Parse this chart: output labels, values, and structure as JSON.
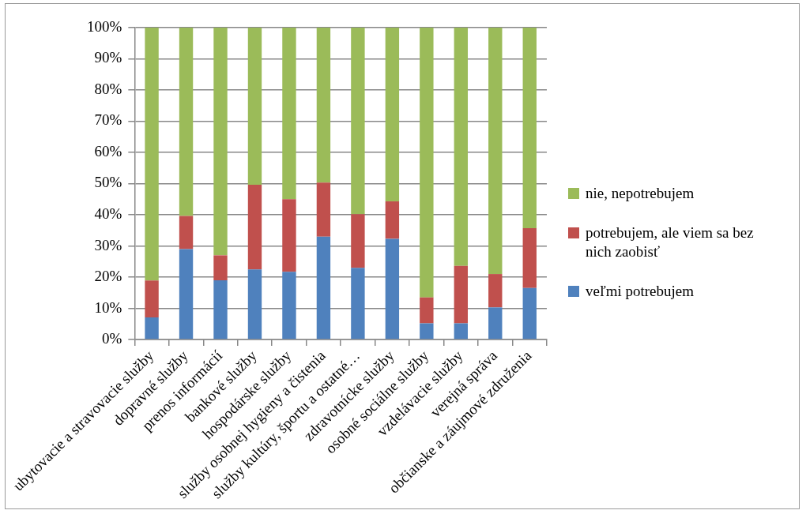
{
  "chart_data": {
    "type": "bar",
    "stacked": true,
    "categories": [
      "ubytovacie a stravovacie služby",
      "dopravné služby",
      "prenos informácií",
      "bankové služby",
      "hospodárske služby",
      "služby osobnej hygieny a čistenia",
      "služby kultúry, športu a ostatné…",
      "zdravotnícke služby",
      "osobné sociálne služby",
      "vzdelávacie služby",
      "verejná správa",
      "občianske a záujmové združenia"
    ],
    "series": [
      {
        "name": "veľmi potrebujem",
        "color": "#4f81bd",
        "values": [
          7.1,
          29,
          19,
          22.5,
          21.7,
          33,
          23,
          32.3,
          5.2,
          5.2,
          10.3,
          16.5
        ]
      },
      {
        "name": "potrebujem, ale viem sa bez nich zaobisť",
        "color": "#c0504d",
        "values": [
          11.8,
          10.6,
          8,
          27.1,
          23.3,
          17.3,
          17.2,
          12,
          8.3,
          18.4,
          10.7,
          19.2
        ]
      },
      {
        "name": "nie, nepotrebujem",
        "color": "#9bbb59",
        "values": [
          81.1,
          60.4,
          73,
          50.4,
          55,
          49.7,
          59.8,
          55.7,
          86.5,
          76.4,
          79,
          64.3
        ]
      }
    ],
    "ylim": [
      0,
      100
    ],
    "yticks": [
      {
        "value": 0,
        "label": "0%"
      },
      {
        "value": 10,
        "label": "10%"
      },
      {
        "value": 20,
        "label": "20%"
      },
      {
        "value": 30,
        "label": "30%"
      },
      {
        "value": 40,
        "label": "40%"
      },
      {
        "value": 50,
        "label": "50%"
      },
      {
        "value": 60,
        "label": "60%"
      },
      {
        "value": 70,
        "label": "70%"
      },
      {
        "value": 80,
        "label": "80%"
      },
      {
        "value": 90,
        "label": "90%"
      },
      {
        "value": 100,
        "label": "100%"
      }
    ],
    "grid": "y",
    "legend": "right"
  }
}
